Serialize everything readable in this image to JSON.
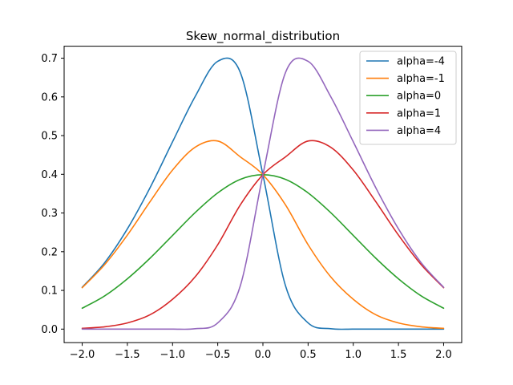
{
  "chart_data": {
    "type": "line",
    "title": "Skew_normal_distribution",
    "xlabel": "",
    "ylabel": "",
    "xlim": [
      -2.2,
      2.2
    ],
    "ylim": [
      -0.035,
      0.731
    ],
    "x_ticks": [
      -2.0,
      -1.5,
      -1.0,
      -0.5,
      0.0,
      0.5,
      1.0,
      1.5,
      2.0
    ],
    "x_tick_labels": [
      "−2.0",
      "−1.5",
      "−1.0",
      "−0.5",
      "0.0",
      "0.5",
      "1.0",
      "1.5",
      "2.0"
    ],
    "y_ticks": [
      0.0,
      0.1,
      0.2,
      0.3,
      0.4,
      0.5,
      0.6,
      0.7
    ],
    "y_tick_labels": [
      "0.0",
      "0.1",
      "0.2",
      "0.3",
      "0.4",
      "0.5",
      "0.6",
      "0.7"
    ],
    "grid": false,
    "legend_position": "top-right",
    "x": [
      -2.0,
      -1.75,
      -1.5,
      -1.25,
      -1.0,
      -0.75,
      -0.5,
      -0.25,
      0.0,
      0.25,
      0.5,
      0.75,
      1.0,
      1.25,
      1.5,
      1.75,
      2.0
    ],
    "series": [
      {
        "name": "alpha=-4",
        "color": "#1f77b4",
        "values": [
          0.108,
          0.172,
          0.259,
          0.365,
          0.484,
          0.601,
          0.692,
          0.663,
          0.399,
          0.112,
          0.016,
          0.001,
          0.0,
          0.0,
          0.0,
          0.0,
          0.0
        ]
      },
      {
        "name": "alpha=-1",
        "color": "#ff7f0e",
        "values": [
          0.107,
          0.167,
          0.243,
          0.329,
          0.411,
          0.47,
          0.486,
          0.445,
          0.399,
          0.321,
          0.218,
          0.135,
          0.077,
          0.037,
          0.016,
          0.006,
          0.002
        ]
      },
      {
        "name": "alpha=0",
        "color": "#2ca02c",
        "values": [
          0.054,
          0.086,
          0.13,
          0.183,
          0.242,
          0.301,
          0.352,
          0.387,
          0.399,
          0.387,
          0.352,
          0.301,
          0.242,
          0.183,
          0.13,
          0.086,
          0.054
        ]
      },
      {
        "name": "alpha=1",
        "color": "#d62728",
        "values": [
          0.002,
          0.006,
          0.016,
          0.037,
          0.077,
          0.135,
          0.218,
          0.321,
          0.399,
          0.445,
          0.486,
          0.47,
          0.411,
          0.329,
          0.243,
          0.167,
          0.107
        ]
      },
      {
        "name": "alpha=4",
        "color": "#9467bd",
        "values": [
          0.0,
          0.0,
          0.0,
          0.0,
          0.0,
          0.001,
          0.016,
          0.112,
          0.399,
          0.663,
          0.692,
          0.601,
          0.484,
          0.365,
          0.259,
          0.172,
          0.108
        ]
      }
    ]
  }
}
